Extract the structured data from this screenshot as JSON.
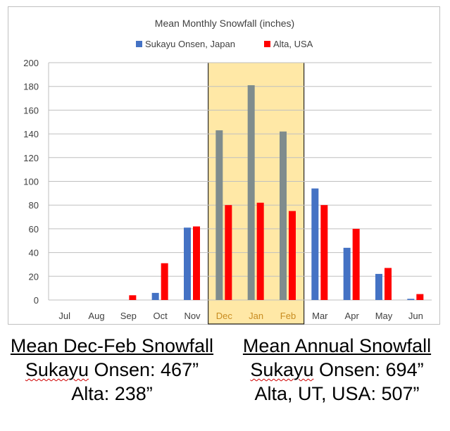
{
  "chart_data": {
    "type": "bar",
    "title": "Mean Monthly Snowfall (inches)",
    "categories": [
      "Jul",
      "Aug",
      "Sep",
      "Oct",
      "Nov",
      "Dec",
      "Jan",
      "Feb",
      "Mar",
      "Apr",
      "May",
      "Jun"
    ],
    "series": [
      {
        "name": "Sukayu Onsen, Japan",
        "color": "#4472c4",
        "highlight_color": "#7f8c8d",
        "values": [
          0,
          0,
          0,
          6,
          61,
          143,
          181,
          142,
          94,
          44,
          22,
          1
        ]
      },
      {
        "name": "Alta, USA",
        "color": "#ff0000",
        "values": [
          0,
          0,
          4,
          31,
          62,
          80,
          82,
          75,
          80,
          60,
          27,
          5
        ]
      }
    ],
    "ylim": [
      0,
      200
    ],
    "yticks": [
      "0",
      "20",
      "40",
      "60",
      "80",
      "100",
      "120",
      "140",
      "160",
      "180",
      "200"
    ],
    "ytick_values": [
      0,
      20,
      40,
      60,
      80,
      100,
      120,
      140,
      160,
      180,
      200
    ],
    "highlight": {
      "categories": [
        "Dec",
        "Jan",
        "Feb"
      ],
      "fill": "#ffe8a6",
      "text_color": "#c88c20"
    },
    "legend": "top-center",
    "grid": true
  },
  "captions": {
    "left": {
      "heading": "Mean Dec-Feb Snowfall",
      "line1_label": "Sukayu",
      "line1_rest": " Onsen: 467”",
      "line2": "Alta: 238”"
    },
    "right": {
      "heading": "Mean Annual Snowfall",
      "line1_label": "Sukayu",
      "line1_rest": " Onsen: 694”",
      "line2": "Alta, UT, USA: 507”"
    }
  }
}
